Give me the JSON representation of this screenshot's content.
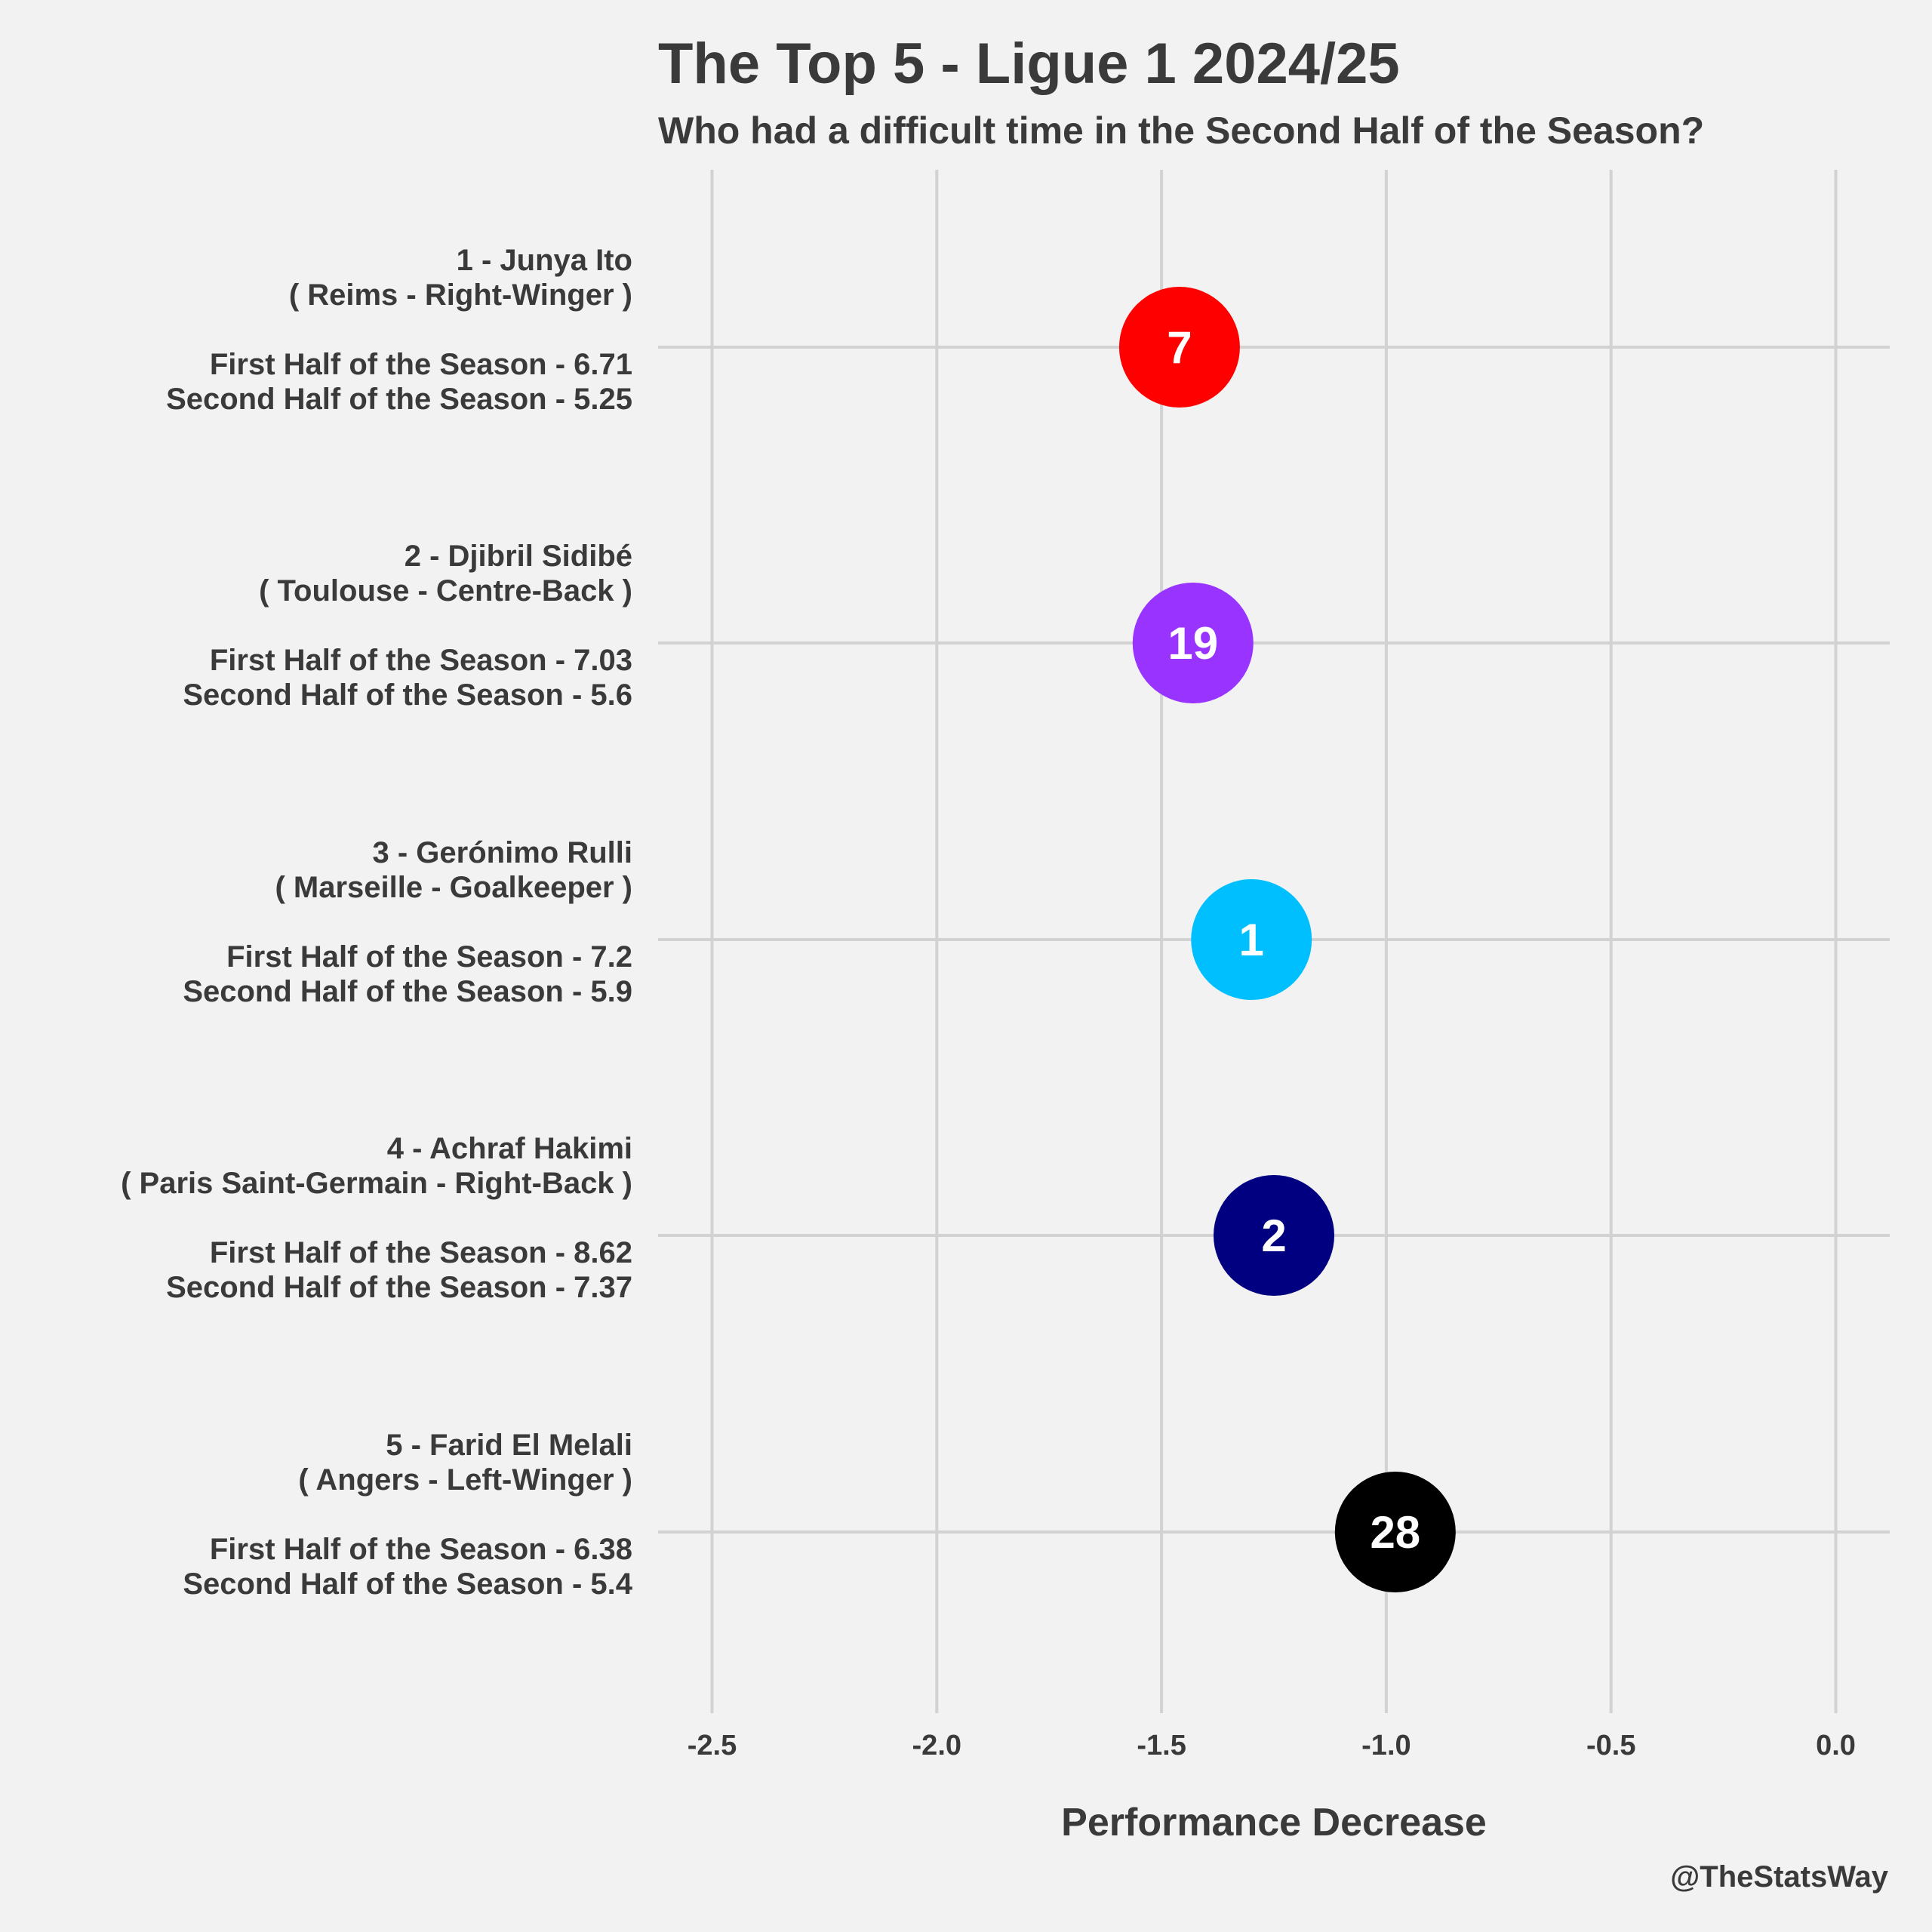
{
  "title": "The Top 5 - Ligue 1 2024/25",
  "subtitle": "Who had a difficult time in the Second Half of the Season?",
  "caption": "@TheStatsWay",
  "chart_data": {
    "type": "scatter",
    "xlabel": "Performance Decrease",
    "ylabel": "",
    "xlim": [
      -2.62,
      0.12
    ],
    "xticks": [
      -2.5,
      -2.0,
      -1.5,
      -1.0,
      -0.5,
      0.0
    ],
    "xtick_labels": [
      "-2.5",
      "-2.0",
      "-1.5",
      "-1.0",
      "-0.5",
      "0.0"
    ],
    "grid": true,
    "legend": "none",
    "points": [
      {
        "rank_line": "1 - Junya Ito",
        "club_line": "( Reims - Right-Winger )",
        "first_line": "First Half of the Season - 6.71",
        "second_line": "Second Half of the Season - 5.25",
        "first_half": 6.71,
        "second_half": 5.25,
        "x": -1.46,
        "number": "7",
        "color": "#ff0000"
      },
      {
        "rank_line": "2 - Djibril Sidibé",
        "club_line": "( Toulouse - Centre-Back )",
        "first_line": "First Half of the Season - 7.03",
        "second_line": "Second Half of the Season - 5.6",
        "first_half": 7.03,
        "second_half": 5.6,
        "x": -1.43,
        "number": "19",
        "color": "#9933ff"
      },
      {
        "rank_line": "3 - Gerónimo Rulli",
        "club_line": "( Marseille - Goalkeeper )",
        "first_line": "First Half of the Season - 7.2",
        "second_line": "Second Half of the Season - 5.9",
        "first_half": 7.2,
        "second_half": 5.9,
        "x": -1.3,
        "number": "1",
        "color": "#00bfff"
      },
      {
        "rank_line": "4 - Achraf Hakimi",
        "club_line": "( Paris Saint-Germain - Right-Back )",
        "first_line": "First Half of the Season - 8.62",
        "second_line": "Second Half of the Season - 7.37",
        "first_half": 8.62,
        "second_half": 7.37,
        "x": -1.25,
        "number": "2",
        "color": "#000080"
      },
      {
        "rank_line": "5 - Farid El Melali",
        "club_line": "( Angers - Left-Winger )",
        "first_line": "First Half of the Season - 6.38",
        "second_line": "Second Half of the Season - 5.4",
        "first_half": 6.38,
        "second_half": 5.4,
        "x": -0.98,
        "number": "28",
        "color": "#000000"
      }
    ]
  }
}
